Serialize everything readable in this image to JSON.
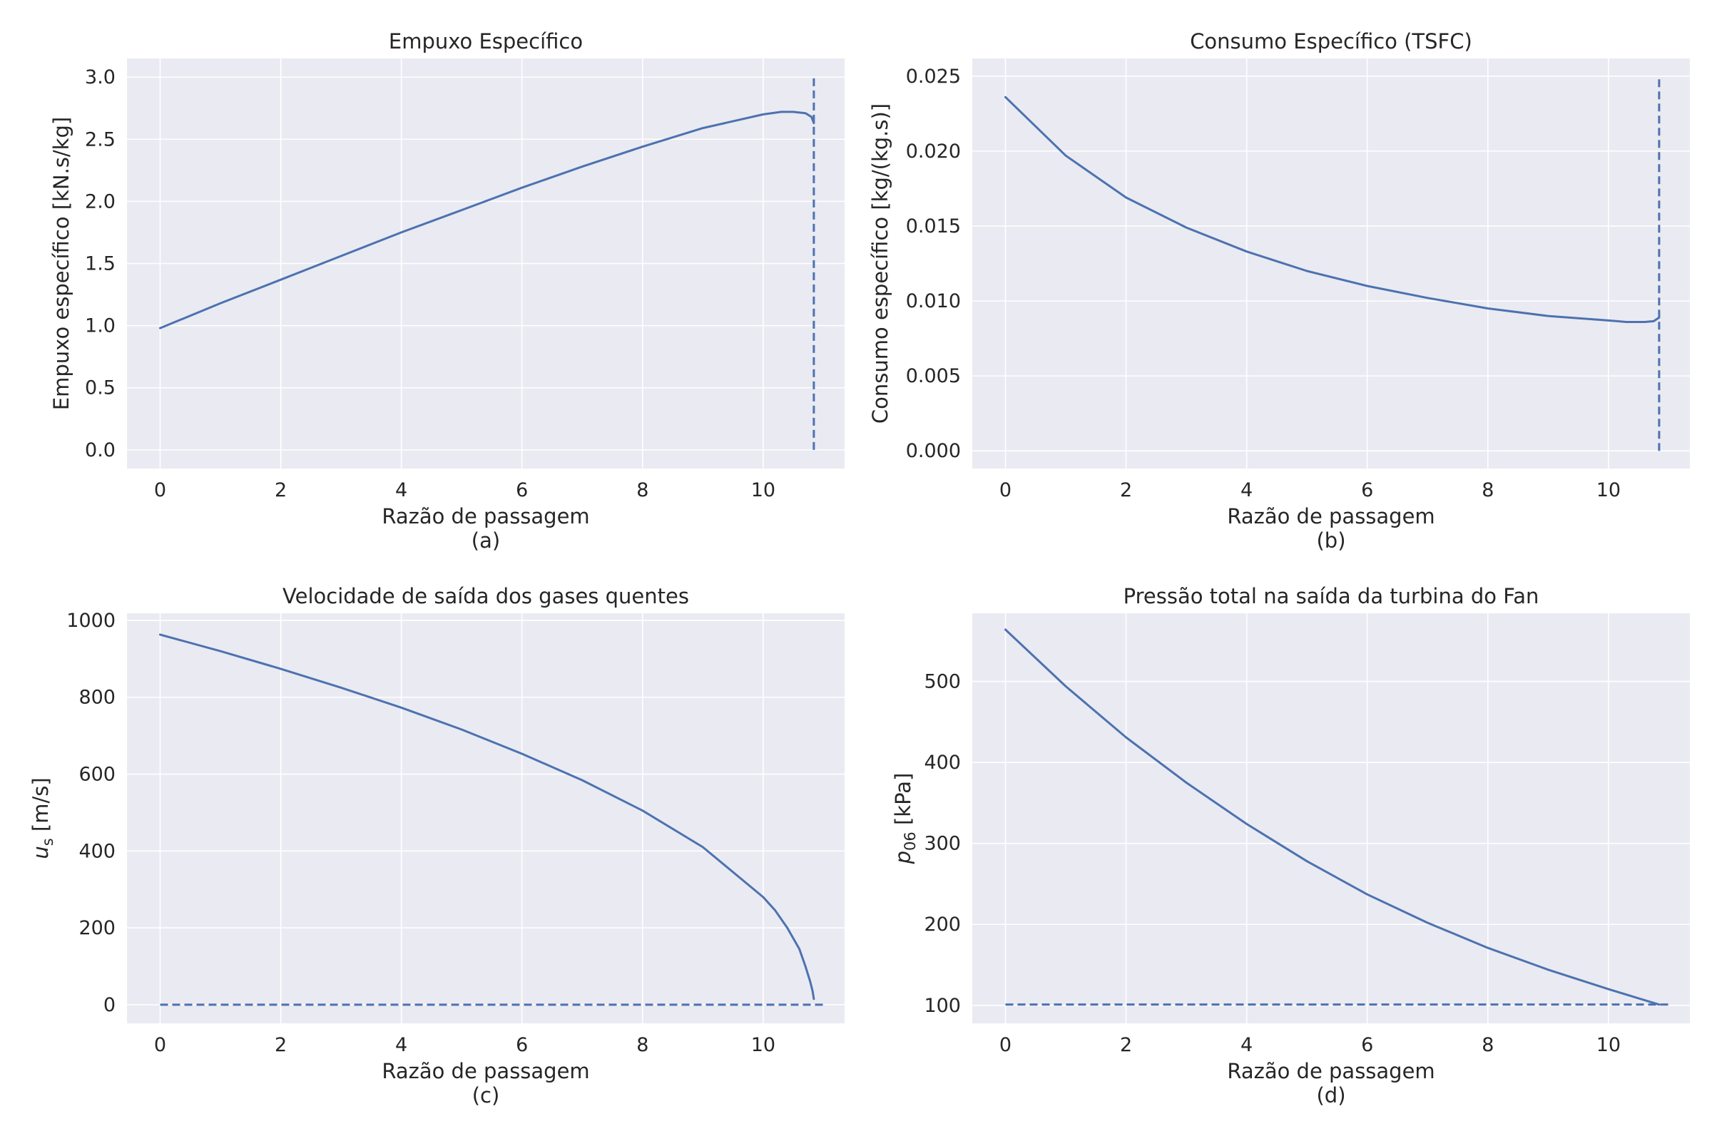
{
  "chart_data": [
    {
      "type": "line",
      "title": "Empuxo Específico",
      "xlabel": "Razão de passagem",
      "ylabel": "Empuxo específico [kN.s/kg]",
      "caption": "(a)",
      "xlim": [
        -0.55,
        11.35
      ],
      "ylim": [
        -0.15,
        3.15
      ],
      "xticks": [
        0,
        2,
        4,
        6,
        8,
        10
      ],
      "yticks": [
        0.0,
        0.5,
        1.0,
        1.5,
        2.0,
        2.5,
        3.0
      ],
      "ytick_decimals": 1,
      "grid": true,
      "x": [
        0,
        1,
        2,
        3,
        4,
        5,
        6,
        7,
        8,
        9,
        10,
        10.3,
        10.5,
        10.7,
        10.8,
        10.84
      ],
      "y": [
        0.98,
        1.18,
        1.37,
        1.56,
        1.75,
        1.93,
        2.11,
        2.28,
        2.44,
        2.59,
        2.7,
        2.72,
        2.72,
        2.71,
        2.68,
        2.63
      ],
      "reference_lines": [
        {
          "orientation": "vertical",
          "x": 10.84,
          "y_range": [
            0.0,
            3.0
          ],
          "style": "dashed"
        }
      ]
    },
    {
      "type": "line",
      "title": "Consumo Específico (TSFC)",
      "xlabel": "Razão de passagem",
      "ylabel": "Consumo específico [kg/(kg.s)]",
      "caption": "(b)",
      "xlim": [
        -0.55,
        11.35
      ],
      "ylim": [
        -0.00118,
        0.02618
      ],
      "xticks": [
        0,
        2,
        4,
        6,
        8,
        10
      ],
      "yticks": [
        0.0,
        0.005,
        0.01,
        0.015,
        0.02,
        0.025
      ],
      "ytick_decimals": 3,
      "grid": true,
      "x": [
        0,
        1,
        2,
        3,
        4,
        5,
        6,
        7,
        8,
        9,
        10,
        10.3,
        10.6,
        10.75,
        10.84
      ],
      "y": [
        0.0236,
        0.0197,
        0.0169,
        0.0149,
        0.0133,
        0.012,
        0.011,
        0.0102,
        0.0095,
        0.009,
        0.0087,
        0.0086,
        0.0086,
        0.00865,
        0.0089
      ],
      "reference_lines": [
        {
          "orientation": "vertical",
          "x": 10.84,
          "y_range": [
            0.0,
            0.025
          ],
          "style": "dashed"
        }
      ]
    },
    {
      "type": "line",
      "title": "Velocidade de saída dos gases quentes",
      "xlabel": "Razão de passagem",
      "ylabel": "u",
      "ylabel_subscript": "s",
      "ylabel_unit": " [m/s]",
      "caption": "(c)",
      "xlim": [
        -0.55,
        11.35
      ],
      "ylim": [
        -48.5,
        1018.5
      ],
      "xticks": [
        0,
        2,
        4,
        6,
        8,
        10
      ],
      "yticks": [
        0,
        200,
        400,
        600,
        800,
        1000
      ],
      "ytick_decimals": 0,
      "grid": true,
      "x": [
        0,
        1,
        2,
        3,
        4,
        5,
        6,
        7,
        8,
        9,
        10,
        10.2,
        10.4,
        10.6,
        10.7,
        10.78,
        10.82,
        10.84
      ],
      "y": [
        963,
        920,
        874,
        825,
        773,
        716,
        653,
        584,
        505,
        410,
        280,
        245,
        200,
        145,
        100,
        60,
        35,
        15
      ],
      "reference_lines": [
        {
          "orientation": "horizontal",
          "y": 0,
          "x_range": [
            0,
            11
          ],
          "style": "dashed"
        }
      ]
    },
    {
      "type": "line",
      "title": "Pressão total na saída da turbina do Fan",
      "xlabel": "Razão de passagem",
      "ylabel": "p",
      "ylabel_subscript": "06",
      "ylabel_unit": " [kPa]",
      "caption": "(d)",
      "xlim": [
        -0.55,
        11.35
      ],
      "ylim": [
        77.8,
        584.2
      ],
      "xticks": [
        0,
        2,
        4,
        6,
        8,
        10
      ],
      "yticks": [
        100,
        200,
        300,
        400,
        500
      ],
      "ytick_decimals": 0,
      "grid": true,
      "x": [
        0,
        1,
        2,
        3,
        4,
        5,
        6,
        7,
        8,
        9,
        10,
        10.84
      ],
      "y": [
        564,
        494,
        431,
        375,
        324,
        278,
        237,
        202,
        171,
        144,
        120,
        101
      ],
      "reference_lines": [
        {
          "orientation": "horizontal",
          "y": 101,
          "x_range": [
            0,
            11
          ],
          "style": "dashed"
        }
      ]
    }
  ]
}
